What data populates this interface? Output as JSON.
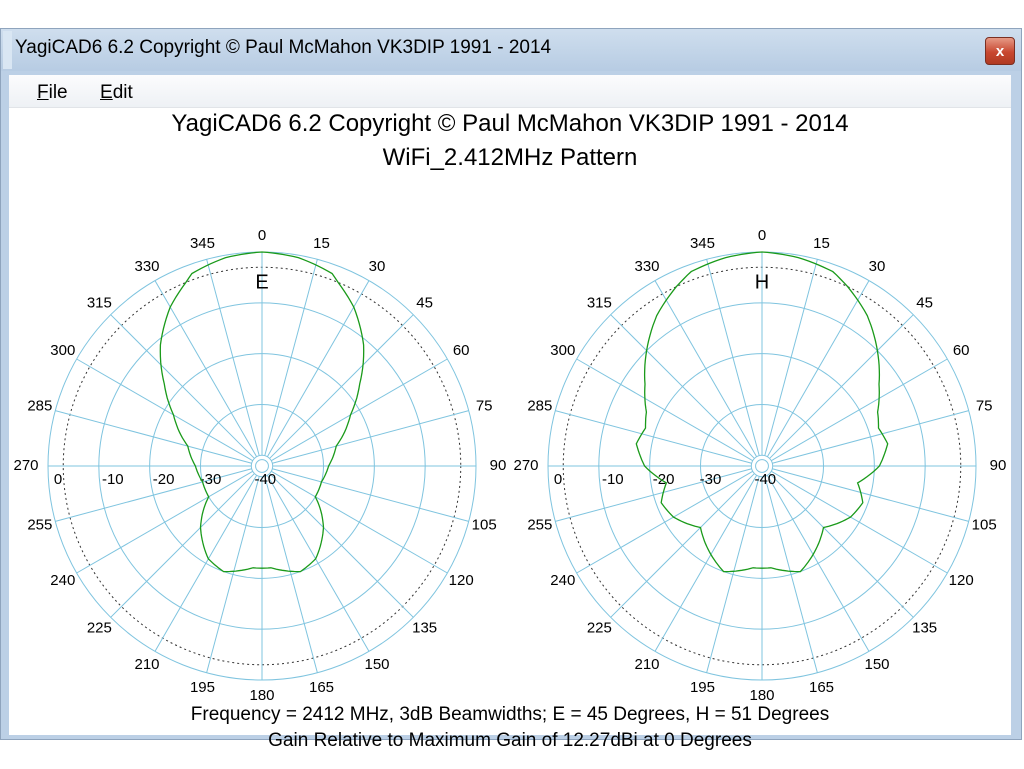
{
  "window": {
    "title": "YagiCAD6 6.2   Copyright © Paul McMahon VK3DIP 1991 - 2014",
    "close_glyph": "x"
  },
  "menu": {
    "items": [
      {
        "label_underlined": "F",
        "label_rest": "ile"
      },
      {
        "label_underlined": "E",
        "label_rest": "dit"
      }
    ]
  },
  "header": {
    "title": "YagiCAD6 6.2   Copyright © Paul McMahon VK3DIP 1991 - 2014",
    "subtitle": "WiFi_2.412MHz Pattern"
  },
  "footer": {
    "line1": "Frequency = 2412 MHz,  3dB Beamwidths; E = 45 Degrees, H = 51 Degrees",
    "line2": "Gain Relative to Maximum Gain of 12.27dBi at 0 Degrees"
  },
  "colors": {
    "grid": "#7fc4df",
    "trace": "#1a9a1a",
    "ref_circle": "#333333"
  },
  "chart_data": [
    {
      "type": "polar",
      "plane_label": "E",
      "angle_ticks": [
        0,
        15,
        30,
        45,
        60,
        75,
        90,
        105,
        120,
        135,
        150,
        165,
        180,
        195,
        210,
        225,
        240,
        255,
        270,
        285,
        300,
        315,
        330,
        345
      ],
      "radial_labels": [
        "0",
        "-10",
        "-20",
        "-30",
        "-40"
      ],
      "radial_db": [
        0,
        -10,
        -20,
        -30,
        -40
      ],
      "ref_circle_db": -3,
      "gain_db_at_angle": [
        [
          0,
          0
        ],
        [
          10,
          -0.5
        ],
        [
          20,
          -1.8
        ],
        [
          22.5,
          -3
        ],
        [
          30,
          -6
        ],
        [
          40,
          -11
        ],
        [
          50,
          -17
        ],
        [
          60,
          -22
        ],
        [
          75,
          -27
        ],
        [
          90,
          -29
        ],
        [
          105,
          -30
        ],
        [
          115,
          -30
        ],
        [
          120,
          -30
        ],
        [
          135,
          -25
        ],
        [
          150,
          -21
        ],
        [
          160,
          -20
        ],
        [
          175,
          -22
        ],
        [
          180,
          -22
        ],
        [
          185,
          -22
        ],
        [
          200,
          -20
        ],
        [
          210,
          -21
        ],
        [
          225,
          -25
        ],
        [
          240,
          -30
        ],
        [
          255,
          -30
        ],
        [
          270,
          -29
        ],
        [
          285,
          -27
        ],
        [
          300,
          -22
        ],
        [
          310,
          -17
        ],
        [
          320,
          -11
        ],
        [
          330,
          -6
        ],
        [
          337.5,
          -3
        ],
        [
          340,
          -1.8
        ],
        [
          350,
          -0.5
        ],
        [
          360,
          0
        ]
      ]
    },
    {
      "type": "polar",
      "plane_label": "H",
      "angle_ticks": [
        0,
        15,
        30,
        45,
        60,
        75,
        90,
        105,
        120,
        135,
        150,
        165,
        180,
        195,
        210,
        225,
        240,
        255,
        270,
        285,
        300,
        315,
        330,
        345
      ],
      "radial_labels": [
        "0",
        "-10",
        "-20",
        "-30",
        "-40"
      ],
      "radial_db": [
        0,
        -10,
        -20,
        -30,
        -40
      ],
      "ref_circle_db": -3,
      "gain_db_at_angle": [
        [
          0,
          0
        ],
        [
          10,
          -0.5
        ],
        [
          20,
          -1.4
        ],
        [
          25.5,
          -3
        ],
        [
          35,
          -6
        ],
        [
          45,
          -10
        ],
        [
          55,
          -14
        ],
        [
          65,
          -17
        ],
        [
          72,
          -18
        ],
        [
          80,
          -17
        ],
        [
          90,
          -19
        ],
        [
          100,
          -23
        ],
        [
          110,
          -21
        ],
        [
          120,
          -22
        ],
        [
          135,
          -25
        ],
        [
          150,
          -22
        ],
        [
          160,
          -20
        ],
        [
          175,
          -22
        ],
        [
          180,
          -22
        ],
        [
          185,
          -22
        ],
        [
          200,
          -20
        ],
        [
          210,
          -22
        ],
        [
          225,
          -25
        ],
        [
          240,
          -22
        ],
        [
          250,
          -21
        ],
        [
          260,
          -23
        ],
        [
          270,
          -19
        ],
        [
          280,
          -17
        ],
        [
          288,
          -18
        ],
        [
          295,
          -17
        ],
        [
          305,
          -14
        ],
        [
          315,
          -10
        ],
        [
          325,
          -6
        ],
        [
          334.5,
          -3
        ],
        [
          340,
          -1.4
        ],
        [
          350,
          -0.5
        ],
        [
          360,
          0
        ]
      ]
    }
  ]
}
